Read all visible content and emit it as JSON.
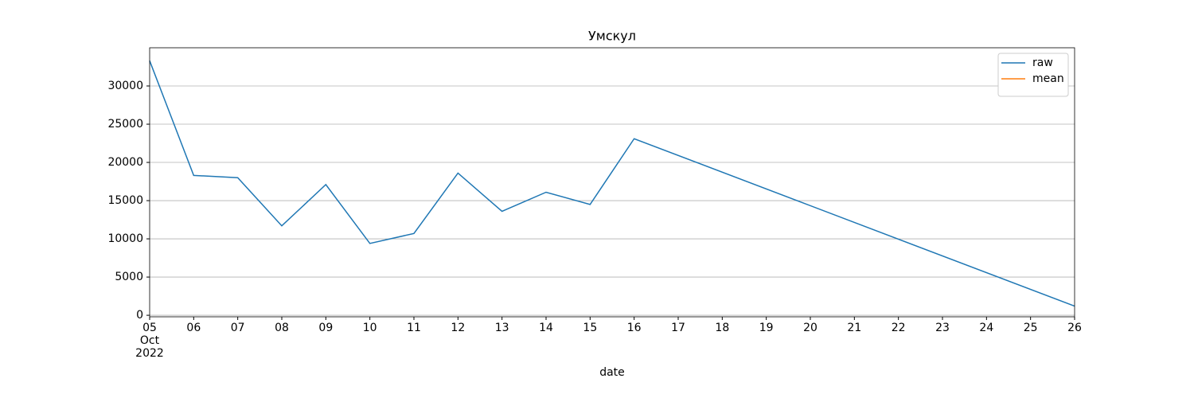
{
  "chart_data": {
    "type": "line",
    "title": "Умскул",
    "xlabel": "date",
    "x": [
      "2022-10-05",
      "2022-10-06",
      "2022-10-07",
      "2022-10-08",
      "2022-10-09",
      "2022-10-10",
      "2022-10-11",
      "2022-10-12",
      "2022-10-13",
      "2022-10-14",
      "2022-10-15",
      "2022-10-16",
      "2022-10-26"
    ],
    "series": [
      {
        "name": "raw",
        "color": "#1f77b4",
        "values": [
          33300,
          18300,
          18000,
          11700,
          17100,
          9400,
          10700,
          18600,
          13600,
          16100,
          14500,
          23100,
          1200
        ]
      },
      {
        "name": "mean",
        "color": "#ff7f0e",
        "values": [
          null,
          null,
          null,
          null,
          null,
          null,
          null,
          null,
          null,
          null,
          null,
          null,
          null
        ]
      }
    ],
    "xlim": [
      "2022-10-05",
      "2022-10-26"
    ],
    "xticks": [
      {
        "value": "2022-10-05",
        "label": "05\nOct\n2022"
      },
      {
        "value": "2022-10-06",
        "label": "06"
      },
      {
        "value": "2022-10-07",
        "label": "07"
      },
      {
        "value": "2022-10-08",
        "label": "08"
      },
      {
        "value": "2022-10-09",
        "label": "09"
      },
      {
        "value": "2022-10-10",
        "label": "10"
      },
      {
        "value": "2022-10-11",
        "label": "11"
      },
      {
        "value": "2022-10-12",
        "label": "12"
      },
      {
        "value": "2022-10-13",
        "label": "13"
      },
      {
        "value": "2022-10-14",
        "label": "14"
      },
      {
        "value": "2022-10-15",
        "label": "15"
      },
      {
        "value": "2022-10-16",
        "label": "16"
      },
      {
        "value": "2022-10-17",
        "label": "17"
      },
      {
        "value": "2022-10-18",
        "label": "18"
      },
      {
        "value": "2022-10-19",
        "label": "19"
      },
      {
        "value": "2022-10-20",
        "label": "20"
      },
      {
        "value": "2022-10-21",
        "label": "21"
      },
      {
        "value": "2022-10-22",
        "label": "22"
      },
      {
        "value": "2022-10-23",
        "label": "23"
      },
      {
        "value": "2022-10-24",
        "label": "24"
      },
      {
        "value": "2022-10-25",
        "label": "25"
      },
      {
        "value": "2022-10-26",
        "label": "26"
      }
    ],
    "ylim": [
      -200,
      35000
    ],
    "yticks": [
      0,
      5000,
      10000,
      15000,
      20000,
      25000,
      30000
    ],
    "grid": "y",
    "legend": "upper right"
  }
}
